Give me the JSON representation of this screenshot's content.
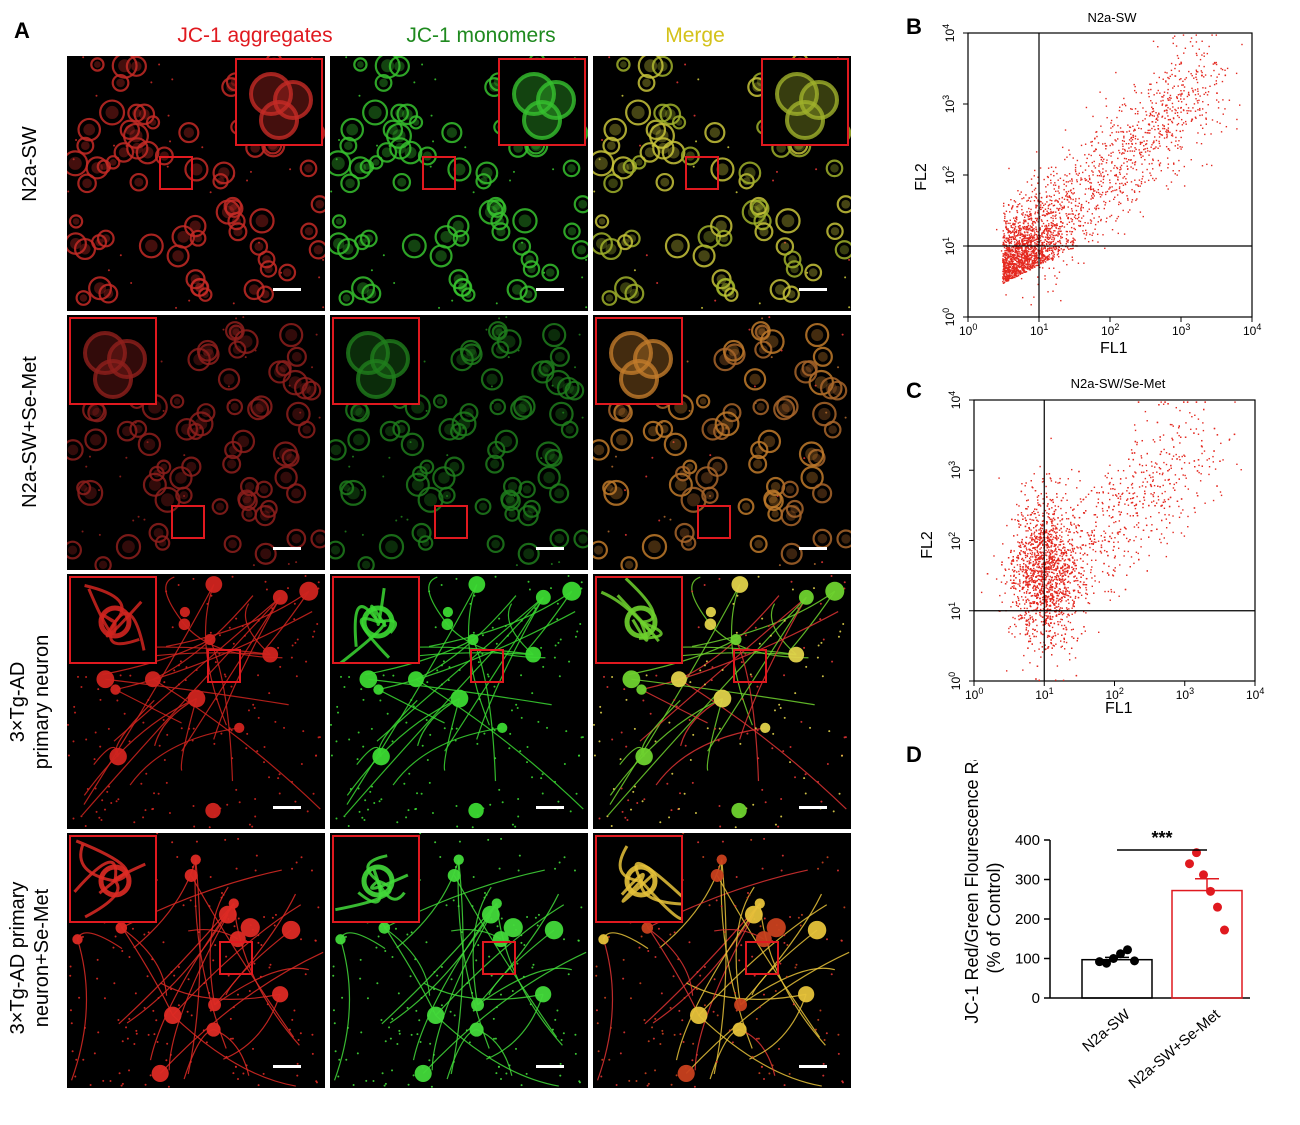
{
  "panel_letters": {
    "a": "A",
    "b": "B",
    "c": "C",
    "d": "D"
  },
  "column_headers": [
    {
      "label": "JC-1 aggregates",
      "color": "#e0191f"
    },
    {
      "label": "JC-1 monomers",
      "color": "#1f8a1f"
    },
    {
      "label": "Merge",
      "color": "#d4c21a"
    }
  ],
  "row_labels": [
    {
      "line1": "N2a-SW",
      "line2": ""
    },
    {
      "line1": "N2a-SW+Se-Met",
      "line2": ""
    },
    {
      "line1": "3×Tg-AD",
      "line2": "primary neuron"
    },
    {
      "line1": "3×Tg-AD primary",
      "line2": "neuron+Se-Met"
    }
  ],
  "flow_b": {
    "title": "N2a-SW",
    "xlabel": "FL1",
    "ylabel": "FL2",
    "tick_base": "10",
    "tick_exps": [
      "0",
      "1",
      "2",
      "3",
      "4"
    ]
  },
  "flow_c": {
    "title": "N2a-SW/Se-Met",
    "xlabel": "FL1",
    "ylabel": "FL2",
    "tick_base": "10",
    "tick_exps": [
      "0",
      "1",
      "2",
      "3",
      "4"
    ]
  },
  "chart_data": {
    "type": "bar",
    "ylabel_line1": "JC-1 Red/Green Flourescence Ratio",
    "ylabel_line2": "(% of Control)",
    "ylim": [
      0,
      400
    ],
    "yticks": [
      "0",
      "100",
      "200",
      "300",
      "400"
    ],
    "categories": [
      "N2a-SW",
      "N2a-SW+Se-Met"
    ],
    "values": [
      97,
      272
    ],
    "errors": [
      6,
      30
    ],
    "points": [
      [
        92,
        88,
        100,
        112,
        122,
        94
      ],
      [
        340,
        368,
        312,
        270,
        230,
        172
      ]
    ],
    "bar_colors": [
      "#000000",
      "#e0191f"
    ],
    "significance": "***"
  }
}
